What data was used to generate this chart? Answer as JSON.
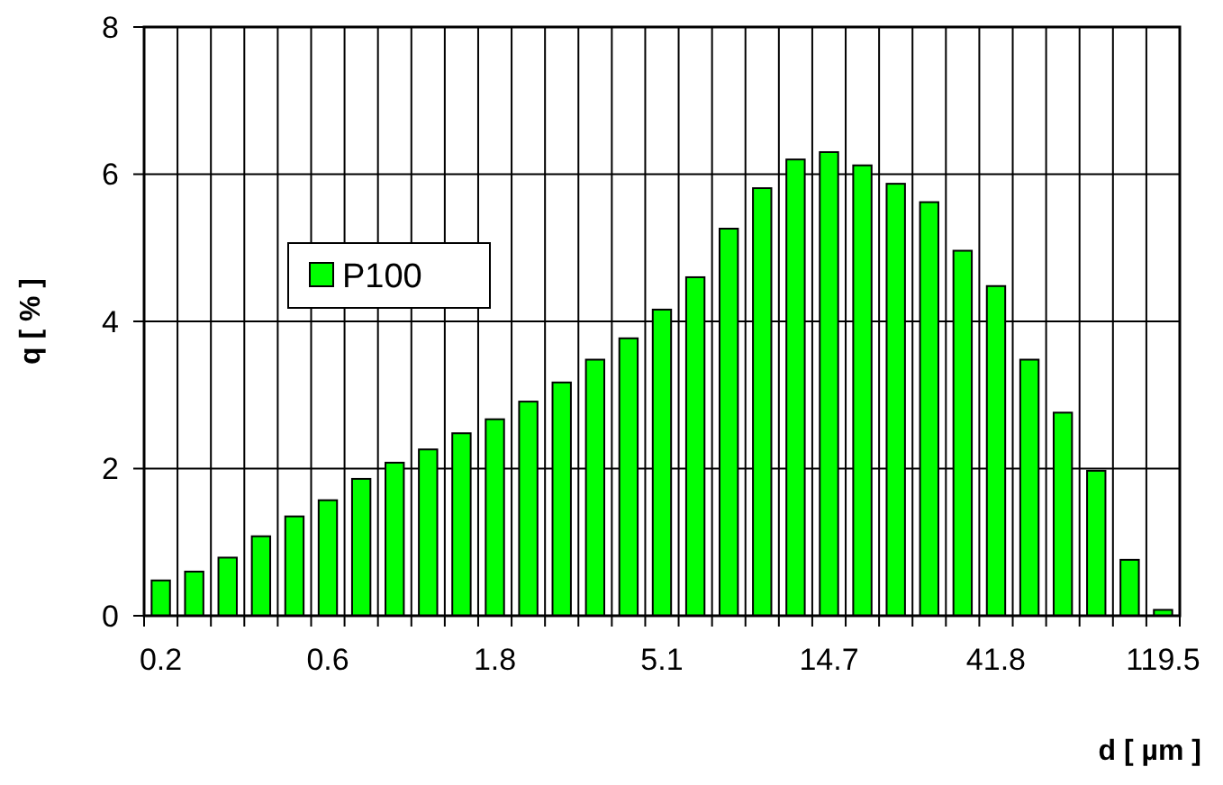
{
  "chart_data": {
    "type": "bar",
    "xlabel": "d [ µm ]",
    "ylabel": "q [ % ]",
    "categories": [
      "0.2",
      null,
      null,
      null,
      null,
      "0.6",
      null,
      null,
      null,
      null,
      "1.8",
      null,
      null,
      null,
      null,
      "5.1",
      null,
      null,
      null,
      null,
      "14.7",
      null,
      null,
      null,
      null,
      "41.8",
      null,
      null,
      null,
      null,
      "119.5"
    ],
    "series": [
      {
        "name": "P100",
        "color": "#00ff00",
        "values": [
          0.48,
          0.6,
          0.79,
          1.08,
          1.35,
          1.57,
          1.86,
          2.08,
          2.26,
          2.48,
          2.67,
          2.91,
          3.17,
          3.48,
          3.77,
          4.16,
          4.6,
          5.26,
          5.81,
          6.2,
          6.3,
          6.12,
          5.87,
          5.62,
          4.96,
          4.48,
          3.48,
          2.76,
          1.97,
          0.76,
          0.08
        ]
      }
    ],
    "ylim": [
      0,
      8
    ],
    "yticks": [
      0,
      2,
      4,
      6,
      8
    ],
    "grid": true,
    "legend": "top left"
  }
}
